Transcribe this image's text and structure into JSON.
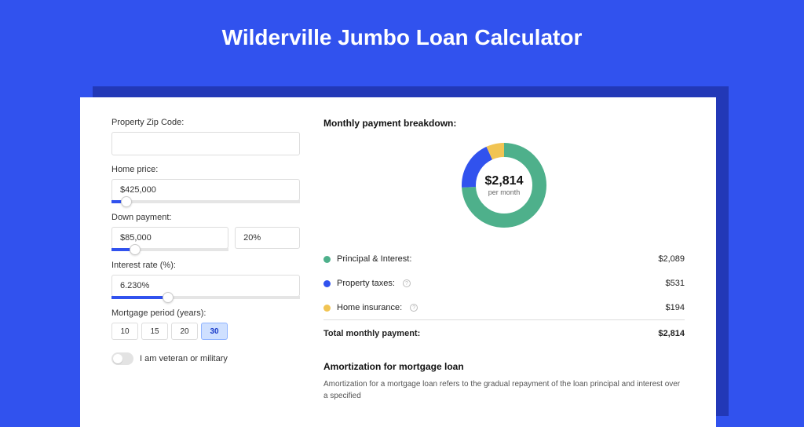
{
  "page": {
    "title": "Wilderville Jumbo Loan Calculator",
    "bg_color": "#3152ee",
    "shadow_color": "#2238b7",
    "panel_color": "#ffffff"
  },
  "form": {
    "zip": {
      "label": "Property Zip Code:",
      "value": ""
    },
    "home_price": {
      "label": "Home price:",
      "value": "$425,000",
      "slider_pct": 8
    },
    "down_payment": {
      "label": "Down payment:",
      "amount": "$85,000",
      "pct": "20%",
      "slider_pct": 20
    },
    "interest_rate": {
      "label": "Interest rate (%):",
      "value": "6.230%",
      "slider_pct": 30
    },
    "period": {
      "label": "Mortgage period (years):",
      "options": [
        "10",
        "15",
        "20",
        "30"
      ],
      "active_index": 3
    },
    "veteran": {
      "label": "I am veteran or military",
      "checked": false
    }
  },
  "breakdown": {
    "title": "Monthly payment breakdown:",
    "donut": {
      "amount": "$2,814",
      "sub": "per month",
      "slices": [
        {
          "key": "principal_interest",
          "pct": 74,
          "color": "#4eb08b"
        },
        {
          "key": "property_taxes",
          "pct": 19,
          "color": "#3152ee"
        },
        {
          "key": "home_insurance",
          "pct": 7,
          "color": "#f1c453"
        }
      ],
      "track_color": "#eeeeee",
      "stroke_width": 18
    },
    "items": [
      {
        "label": "Principal & Interest:",
        "value": "$2,089",
        "color": "#4eb08b",
        "info": false
      },
      {
        "label": "Property taxes:",
        "value": "$531",
        "color": "#3152ee",
        "info": true
      },
      {
        "label": "Home insurance:",
        "value": "$194",
        "color": "#f1c453",
        "info": true
      }
    ],
    "total": {
      "label": "Total monthly payment:",
      "value": "$2,814"
    }
  },
  "amortization": {
    "title": "Amortization for mortgage loan",
    "text": "Amortization for a mortgage loan refers to the gradual repayment of the loan principal and interest over a specified"
  }
}
